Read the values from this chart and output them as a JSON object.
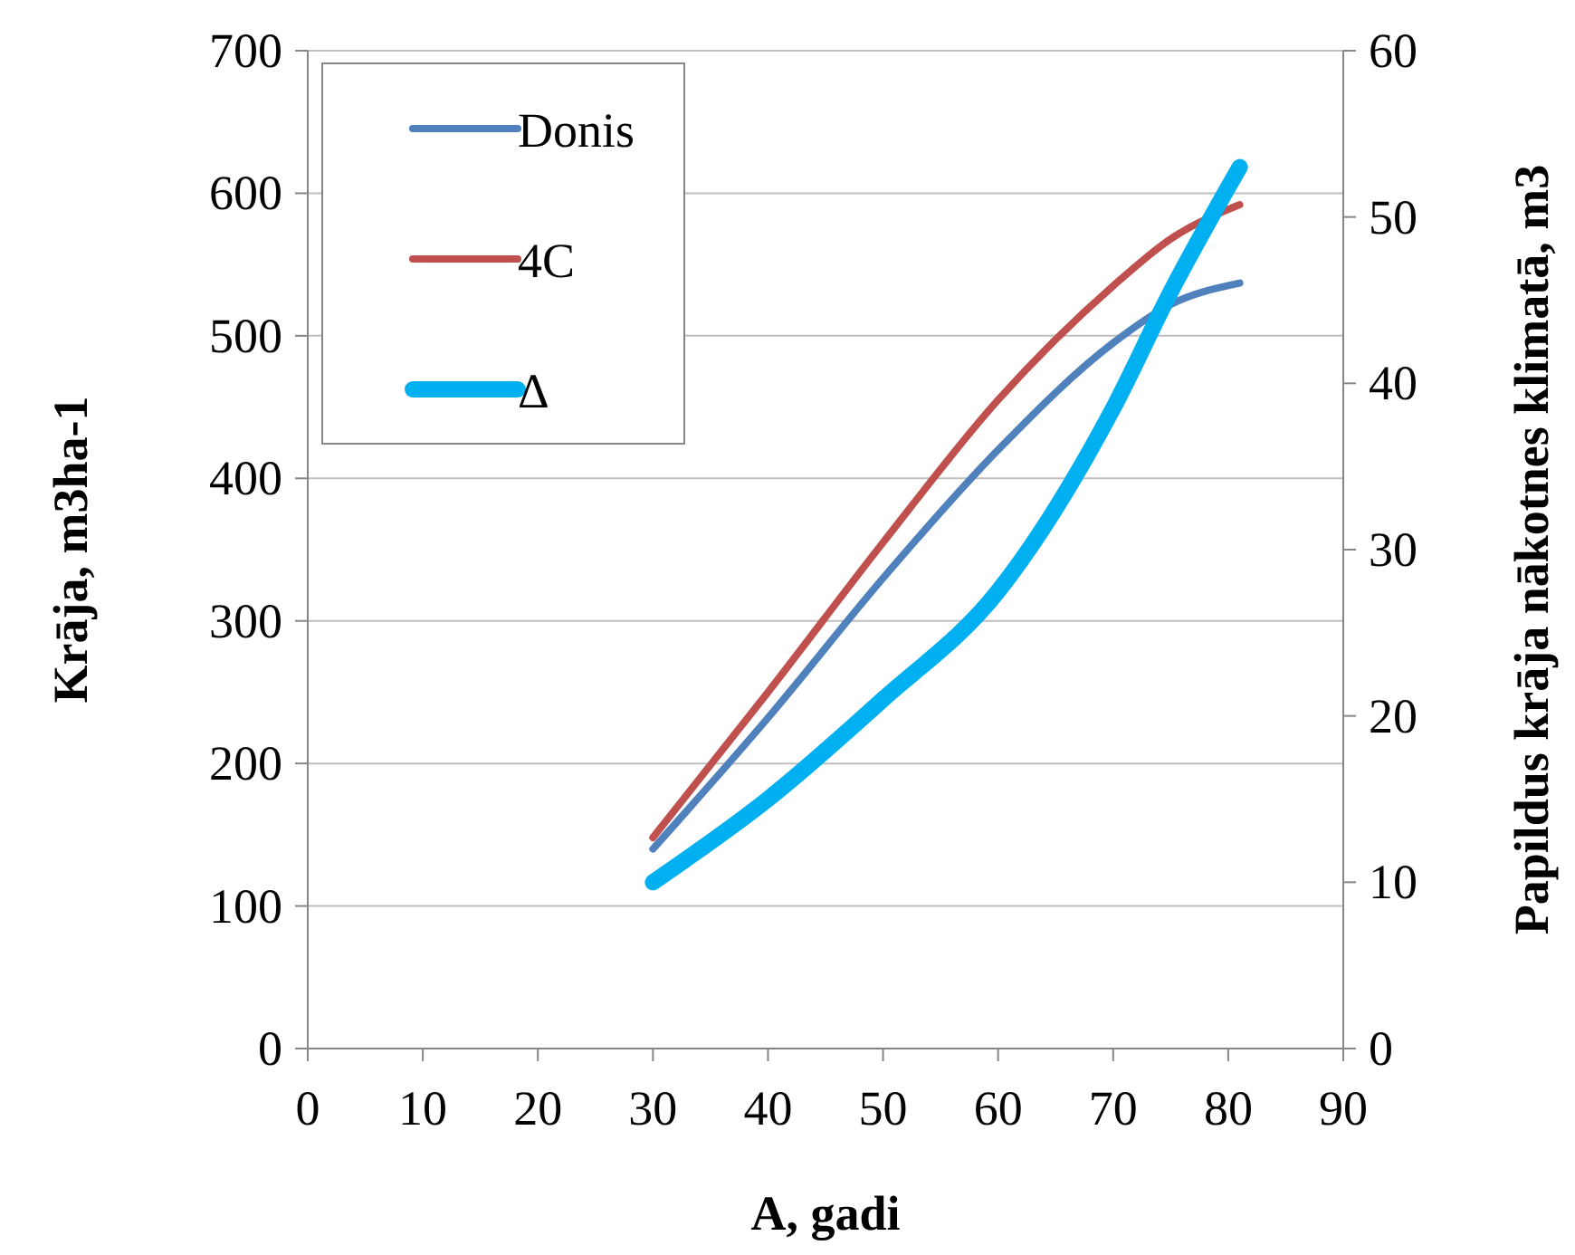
{
  "chart_data": {
    "type": "line",
    "xlabel": "A, gadi",
    "ylabel": "Krāja, m3ha-1",
    "y2label": "Papildus krāja nākotnes klimatā, m3",
    "x": [
      30,
      40,
      50,
      60,
      70,
      75,
      81
    ],
    "series": [
      {
        "name": "Donis",
        "color": "#4f81bd",
        "values": [
          140,
          232,
          330,
          420,
          495,
          522,
          537
        ]
      },
      {
        "name": "4C",
        "color": "#c0504d",
        "values": [
          148,
          250,
          355,
          455,
          535,
          568,
          592
        ]
      },
      {
        "name": "Δ",
        "color": "#00b0f0",
        "axis": "y2",
        "values": [
          10,
          15,
          21,
          27.5,
          38.5,
          45.5,
          53
        ]
      }
    ],
    "xlim": [
      0,
      90
    ],
    "xticks": [
      0,
      10,
      20,
      30,
      40,
      50,
      60,
      70,
      80,
      90
    ],
    "ylim": [
      0,
      700
    ],
    "yticks": [
      0,
      100,
      200,
      300,
      400,
      500,
      600,
      700
    ],
    "y2lim": [
      0,
      60
    ],
    "y2ticks": [
      0,
      10,
      20,
      30,
      40,
      50,
      60
    ],
    "grid": "y",
    "legend": "top left",
    "marker": "none",
    "line_style": "solid"
  }
}
